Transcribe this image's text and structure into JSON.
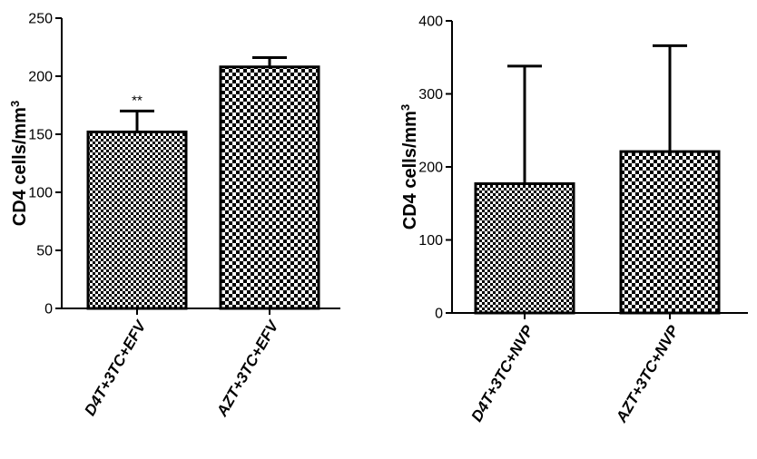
{
  "chart_data": [
    {
      "type": "bar",
      "categories": [
        "D4T+3TC+EFV",
        "AZT+3TC+EFV"
      ],
      "values": [
        152,
        208
      ],
      "errors": [
        18,
        8
      ],
      "annotations": [
        "**",
        ""
      ],
      "ylabel": "CD4 cells/mm",
      "ylabel_sup": "3",
      "ylim": [
        0,
        250
      ],
      "yticks": [
        "0",
        "50",
        "100",
        "150",
        "200",
        "250"
      ],
      "ytick_values": [
        0,
        50,
        100,
        150,
        200,
        250
      ],
      "grid": false,
      "pattern": "checkerboard"
    },
    {
      "type": "bar",
      "categories": [
        "D4T+3TC+NVP",
        "AZT+3TC+NVP"
      ],
      "values": [
        177,
        221
      ],
      "errors": [
        161,
        145
      ],
      "annotations": [
        "",
        ""
      ],
      "ylabel": "CD4 cells/mm",
      "ylabel_sup": "3",
      "ylim": [
        0,
        400
      ],
      "yticks": [
        "0",
        "100",
        "200",
        "300",
        "400"
      ],
      "ytick_values": [
        0,
        100,
        200,
        300,
        400
      ],
      "grid": false,
      "pattern": "checkerboard"
    }
  ],
  "colors": {
    "ink": "#000000",
    "background": "#ffffff"
  }
}
